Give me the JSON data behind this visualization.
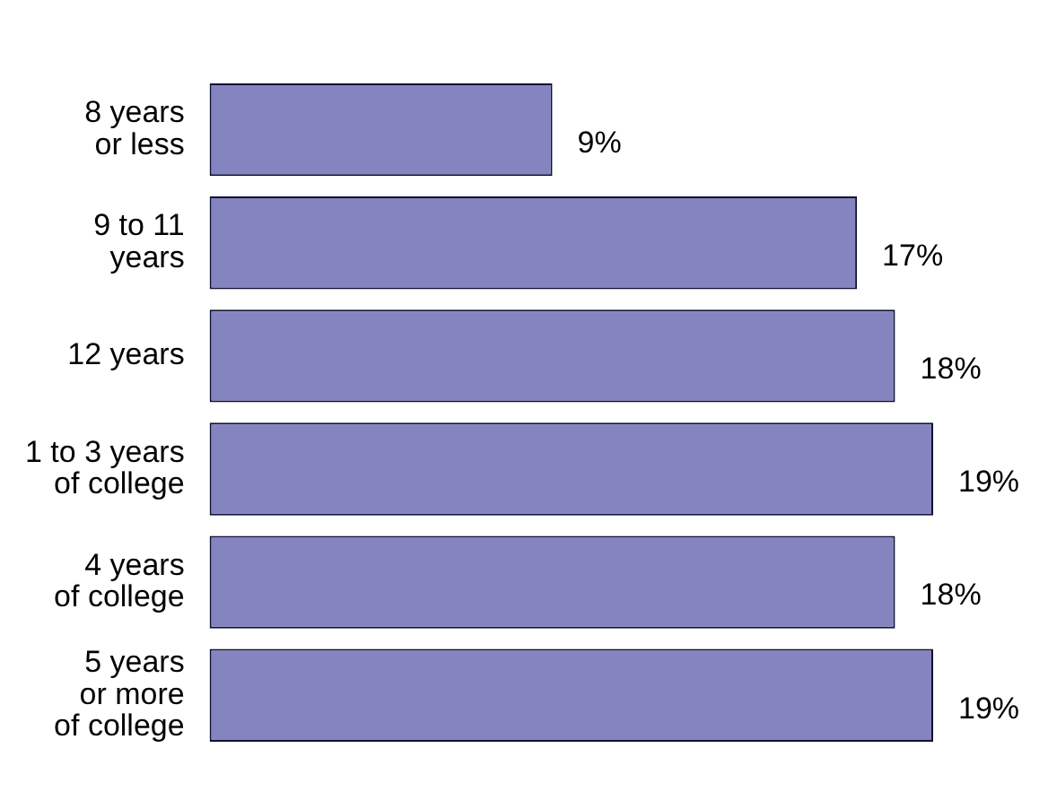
{
  "chart_data": {
    "type": "bar",
    "orientation": "horizontal",
    "categories": [
      "8 years\nor less",
      "9 to 11\nyears",
      "12 years",
      "1 to 3 years\nof college",
      "4 years\nof college",
      "5 years\nor more\nof college"
    ],
    "values": [
      9,
      17,
      18,
      19,
      18,
      19
    ],
    "value_labels": [
      "9%",
      "17%",
      "18%",
      "19%",
      "18%",
      "19%"
    ],
    "color": "#8484c0",
    "grid": false,
    "legend": false
  }
}
